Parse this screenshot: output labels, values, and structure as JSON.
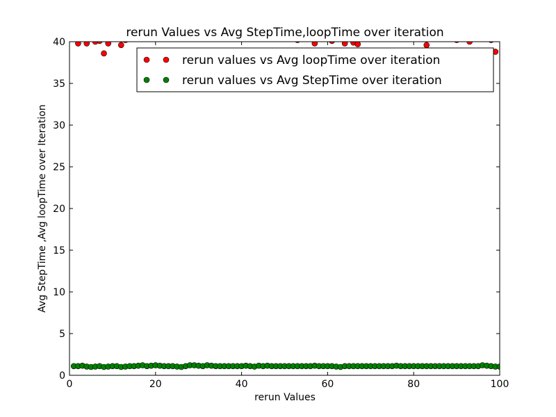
{
  "chart_data": {
    "type": "scatter",
    "title": "rerun Values vs Avg StepTime,loopTime over iteration",
    "xlabel": "rerun Values",
    "ylabel": "Avg StepTime ,Avg loopTime over Iteration",
    "xlim": [
      0,
      100
    ],
    "ylim": [
      0,
      40
    ],
    "xticks": [
      "0",
      "20",
      "40",
      "60",
      "80",
      "100"
    ],
    "yticks": [
      "0",
      "5",
      "10",
      "15",
      "20",
      "25",
      "30",
      "35",
      "40"
    ],
    "grid": false,
    "legend_position": "top-right",
    "series": [
      {
        "name": "rerun values vs Avg loopTime over iteration",
        "color": "#ff0000",
        "points": [
          [
            2,
            39.8
          ],
          [
            4,
            39.8
          ],
          [
            6,
            40.0
          ],
          [
            7,
            40.1
          ],
          [
            8,
            38.6
          ],
          [
            9,
            39.8
          ],
          [
            12,
            39.6
          ],
          [
            13,
            40.2
          ],
          [
            53,
            40.2
          ],
          [
            57,
            39.8
          ],
          [
            61,
            40.1
          ],
          [
            64,
            39.8
          ],
          [
            66,
            39.9
          ],
          [
            67,
            39.7
          ],
          [
            83,
            39.6
          ],
          [
            90,
            40.2
          ],
          [
            93,
            40.0
          ],
          [
            98,
            40.2
          ],
          [
            99,
            38.8
          ]
        ]
      },
      {
        "name": "rerun values vs Avg StepTime over iteration",
        "color": "#008000",
        "points": [
          [
            1,
            1.1
          ],
          [
            2,
            1.1
          ],
          [
            3,
            1.15
          ],
          [
            4,
            1.05
          ],
          [
            5,
            1.0
          ],
          [
            6,
            1.05
          ],
          [
            7,
            1.1
          ],
          [
            8,
            1.0
          ],
          [
            9,
            1.05
          ],
          [
            10,
            1.1
          ],
          [
            11,
            1.1
          ],
          [
            12,
            1.0
          ],
          [
            13,
            1.05
          ],
          [
            14,
            1.1
          ],
          [
            15,
            1.1
          ],
          [
            16,
            1.15
          ],
          [
            17,
            1.2
          ],
          [
            18,
            1.1
          ],
          [
            19,
            1.15
          ],
          [
            20,
            1.2
          ],
          [
            21,
            1.15
          ],
          [
            22,
            1.1
          ],
          [
            23,
            1.1
          ],
          [
            24,
            1.1
          ],
          [
            25,
            1.05
          ],
          [
            26,
            1.0
          ],
          [
            27,
            1.1
          ],
          [
            28,
            1.2
          ],
          [
            29,
            1.2
          ],
          [
            30,
            1.15
          ],
          [
            31,
            1.1
          ],
          [
            32,
            1.2
          ],
          [
            33,
            1.15
          ],
          [
            34,
            1.1
          ],
          [
            35,
            1.1
          ],
          [
            36,
            1.1
          ],
          [
            37,
            1.1
          ],
          [
            38,
            1.1
          ],
          [
            39,
            1.1
          ],
          [
            40,
            1.1
          ],
          [
            41,
            1.15
          ],
          [
            42,
            1.1
          ],
          [
            43,
            1.05
          ],
          [
            44,
            1.15
          ],
          [
            45,
            1.1
          ],
          [
            46,
            1.15
          ],
          [
            47,
            1.1
          ],
          [
            48,
            1.1
          ],
          [
            49,
            1.1
          ],
          [
            50,
            1.1
          ],
          [
            51,
            1.1
          ],
          [
            52,
            1.1
          ],
          [
            53,
            1.1
          ],
          [
            54,
            1.1
          ],
          [
            55,
            1.1
          ],
          [
            56,
            1.1
          ],
          [
            57,
            1.15
          ],
          [
            58,
            1.1
          ],
          [
            59,
            1.1
          ],
          [
            60,
            1.1
          ],
          [
            61,
            1.1
          ],
          [
            62,
            1.05
          ],
          [
            63,
            1.0
          ],
          [
            64,
            1.1
          ],
          [
            65,
            1.1
          ],
          [
            66,
            1.1
          ],
          [
            67,
            1.1
          ],
          [
            68,
            1.1
          ],
          [
            69,
            1.1
          ],
          [
            70,
            1.1
          ],
          [
            71,
            1.1
          ],
          [
            72,
            1.1
          ],
          [
            73,
            1.1
          ],
          [
            74,
            1.1
          ],
          [
            75,
            1.1
          ],
          [
            76,
            1.15
          ],
          [
            77,
            1.1
          ],
          [
            78,
            1.1
          ],
          [
            79,
            1.1
          ],
          [
            80,
            1.1
          ],
          [
            81,
            1.1
          ],
          [
            82,
            1.1
          ],
          [
            83,
            1.1
          ],
          [
            84,
            1.1
          ],
          [
            85,
            1.1
          ],
          [
            86,
            1.1
          ],
          [
            87,
            1.1
          ],
          [
            88,
            1.1
          ],
          [
            89,
            1.1
          ],
          [
            90,
            1.1
          ],
          [
            91,
            1.1
          ],
          [
            92,
            1.1
          ],
          [
            93,
            1.1
          ],
          [
            94,
            1.1
          ],
          [
            95,
            1.1
          ],
          [
            96,
            1.2
          ],
          [
            97,
            1.15
          ],
          [
            98,
            1.1
          ],
          [
            99,
            1.05
          ],
          [
            100,
            1.05
          ]
        ]
      }
    ]
  }
}
